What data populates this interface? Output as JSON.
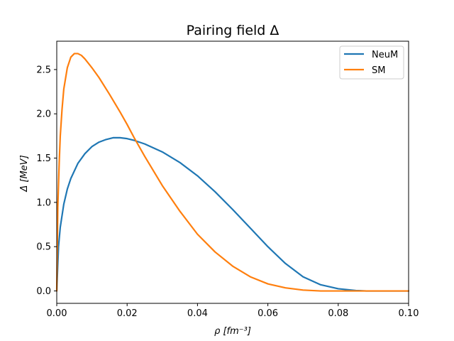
{
  "chart_data": {
    "type": "line",
    "title": "Pairing field Δ",
    "xlabel": "ρ [fm⁻³]",
    "ylabel": "Δ [MeV]",
    "xlim": [
      0.0,
      0.1
    ],
    "ylim": [
      -0.14,
      2.82
    ],
    "xticks": [
      0.0,
      0.02,
      0.04,
      0.06,
      0.08,
      0.1
    ],
    "xtick_labels": [
      "0.00",
      "0.02",
      "0.04",
      "0.06",
      "0.08",
      "0.10"
    ],
    "yticks": [
      0.0,
      0.5,
      1.0,
      1.5,
      2.0,
      2.5
    ],
    "ytick_labels": [
      "0.0",
      "0.5",
      "1.0",
      "1.5",
      "2.0",
      "2.5"
    ],
    "grid": false,
    "legend_position": "top-right",
    "series": [
      {
        "name": "NeuM",
        "color": "#1f77b4",
        "x": [
          0.0,
          0.0005,
          0.001,
          0.002,
          0.003,
          0.004,
          0.006,
          0.008,
          0.01,
          0.012,
          0.014,
          0.016,
          0.017,
          0.018,
          0.02,
          0.022,
          0.025,
          0.03,
          0.035,
          0.04,
          0.045,
          0.05,
          0.055,
          0.06,
          0.065,
          0.07,
          0.075,
          0.08,
          0.085,
          0.088,
          0.09,
          0.095,
          0.1
        ],
        "y": [
          0.0,
          0.5,
          0.72,
          0.98,
          1.15,
          1.27,
          1.44,
          1.55,
          1.63,
          1.68,
          1.71,
          1.73,
          1.73,
          1.73,
          1.72,
          1.7,
          1.66,
          1.57,
          1.45,
          1.3,
          1.12,
          0.92,
          0.71,
          0.5,
          0.31,
          0.16,
          0.07,
          0.025,
          0.005,
          0.0,
          0.0,
          0.0,
          0.0
        ]
      },
      {
        "name": "SM",
        "color": "#ff7f0e",
        "x": [
          0.0,
          0.0003,
          0.0007,
          0.001,
          0.0015,
          0.002,
          0.003,
          0.004,
          0.005,
          0.006,
          0.007,
          0.008,
          0.01,
          0.012,
          0.015,
          0.018,
          0.02,
          0.022,
          0.025,
          0.03,
          0.035,
          0.04,
          0.045,
          0.05,
          0.055,
          0.06,
          0.065,
          0.07,
          0.075,
          0.08,
          0.085,
          0.09,
          0.1
        ],
        "y": [
          0.0,
          0.95,
          1.45,
          1.75,
          2.05,
          2.28,
          2.52,
          2.64,
          2.68,
          2.68,
          2.66,
          2.62,
          2.52,
          2.41,
          2.22,
          2.02,
          1.88,
          1.73,
          1.52,
          1.19,
          0.9,
          0.64,
          0.44,
          0.28,
          0.16,
          0.08,
          0.035,
          0.01,
          0.0,
          0.0,
          0.0,
          0.0,
          0.0
        ]
      }
    ]
  }
}
